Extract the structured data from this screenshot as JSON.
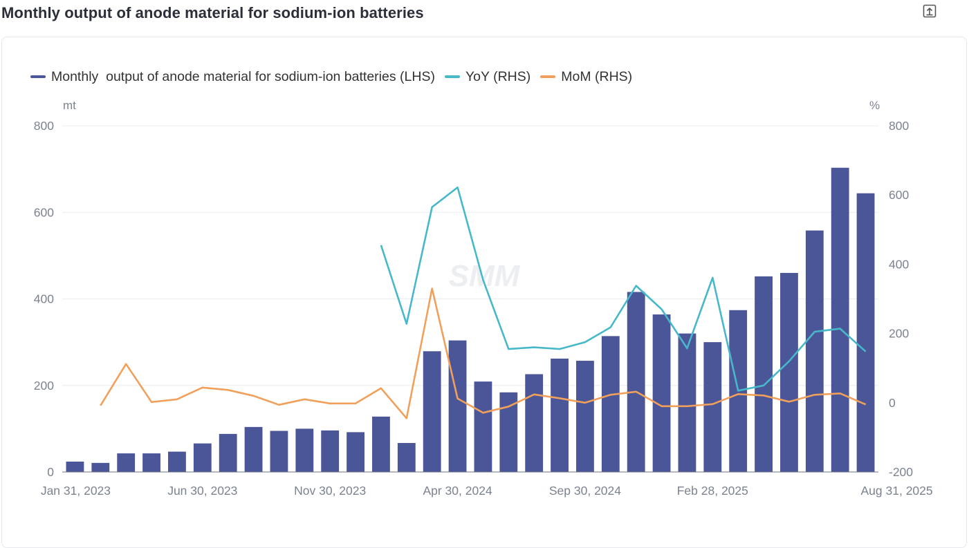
{
  "page": {
    "title": "Monthly output of anode material for sodium-ion batteries",
    "export_icon": "export-icon"
  },
  "colors": {
    "bars": "#4b5698",
    "yoy": "#47b8c9",
    "mom": "#f0a05a",
    "grid": "#e9ecf1",
    "axis": "#6b7180"
  },
  "watermark": "SMM",
  "chart_data": {
    "type": "bar",
    "legend": [
      {
        "label": "Monthly  output of anode material for sodium-ion batteries (LHS)",
        "color": "#4b5698"
      },
      {
        "label": "YoY (RHS)",
        "color": "#47b8c9"
      },
      {
        "label": "MoM (RHS)",
        "color": "#f0a05a"
      }
    ],
    "left_axis": {
      "unit": "mt",
      "min": 0,
      "max": 800,
      "ticks": [
        "0",
        "200",
        "400",
        "600",
        "800"
      ]
    },
    "right_axis": {
      "unit": "%",
      "min": -200,
      "max": 800,
      "ticks": [
        "-200",
        "0",
        "200",
        "400",
        "600",
        "800"
      ]
    },
    "x_tick_labels": [
      "Jan 31, 2023",
      "Jun 30, 2023",
      "Nov 30, 2023",
      "Apr 30, 2024",
      "Sep 30, 2024",
      "Feb 28, 2025",
      "Aug 31, 2025"
    ],
    "categories": [
      "2023-01",
      "2023-02",
      "2023-03",
      "2023-04",
      "2023-05",
      "2023-06",
      "2023-07",
      "2023-08",
      "2023-09",
      "2023-10",
      "2023-11",
      "2023-12",
      "2024-01",
      "2024-02",
      "2024-03",
      "2024-04",
      "2024-05",
      "2024-06",
      "2024-07",
      "2024-08",
      "2024-09",
      "2024-10",
      "2024-11",
      "2024-12",
      "2025-01",
      "2025-02",
      "2025-03",
      "2025-04",
      "2025-05",
      "2025-06",
      "2025-07",
      "2025-08"
    ],
    "series": [
      {
        "name": "Monthly  output of anode material for sodium-ion batteries (LHS)",
        "kind": "bar",
        "axis": "left",
        "values": [
          24,
          21,
          43,
          43,
          47,
          66,
          88,
          104,
          95,
          100,
          96,
          92,
          128,
          67,
          279,
          304,
          209,
          184,
          226,
          262,
          257,
          314,
          416,
          364,
          320,
          300,
          374,
          452,
          460,
          558,
          703,
          644
        ]
      },
      {
        "name": "YoY (RHS)",
        "kind": "line",
        "axis": "right",
        "values": [
          null,
          null,
          null,
          null,
          null,
          null,
          null,
          null,
          null,
          null,
          null,
          null,
          455,
          228,
          565,
          622,
          355,
          155,
          160,
          155,
          175,
          218,
          338,
          270,
          157,
          361,
          35,
          50,
          120,
          205,
          214,
          148
        ]
      },
      {
        "name": "MoM (RHS)",
        "kind": "line",
        "axis": "right",
        "values": [
          null,
          -8,
          112,
          2,
          10,
          44,
          37,
          20,
          -6,
          10,
          -2,
          -2,
          42,
          -45,
          330,
          12,
          -29,
          -11,
          24,
          13,
          0,
          23,
          32,
          -10,
          -10,
          -4,
          25,
          21,
          3,
          23,
          27,
          -5
        ]
      }
    ]
  }
}
